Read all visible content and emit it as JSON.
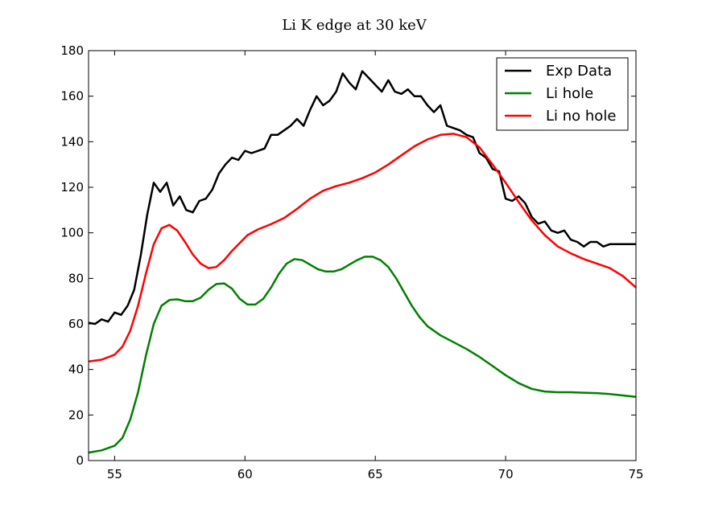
{
  "chart_data": {
    "type": "line",
    "title": "Li K edge at 30 keV",
    "xlabel": "",
    "ylabel": "",
    "xlim": [
      54,
      75
    ],
    "ylim": [
      0,
      180
    ],
    "xticks": [
      55,
      60,
      65,
      70,
      75
    ],
    "yticks": [
      0,
      20,
      40,
      60,
      80,
      100,
      120,
      140,
      160,
      180
    ],
    "grid": false,
    "legend_position": "top-right",
    "series": [
      {
        "name": "Exp Data",
        "color": "#000000",
        "x": [
          54.0,
          54.25,
          54.5,
          54.75,
          55.0,
          55.25,
          55.5,
          55.75,
          56.0,
          56.25,
          56.5,
          56.75,
          57.0,
          57.25,
          57.5,
          57.75,
          58.0,
          58.25,
          58.5,
          58.75,
          59.0,
          59.25,
          59.5,
          59.75,
          60.0,
          60.25,
          60.5,
          60.75,
          61.0,
          61.25,
          61.5,
          61.75,
          62.0,
          62.25,
          62.5,
          62.75,
          63.0,
          63.25,
          63.5,
          63.75,
          64.0,
          64.25,
          64.5,
          64.75,
          65.0,
          65.25,
          65.5,
          65.75,
          66.0,
          66.25,
          66.5,
          66.75,
          67.0,
          67.25,
          67.5,
          67.75,
          68.0,
          68.25,
          68.5,
          68.75,
          69.0,
          69.25,
          69.5,
          69.75,
          70.0,
          70.25,
          70.5,
          70.75,
          71.0,
          71.25,
          71.5,
          71.75,
          72.0,
          72.25,
          72.5,
          72.75,
          73.0,
          73.25,
          73.5,
          73.75,
          74.0,
          74.25,
          74.5,
          74.75,
          75.0
        ],
        "y": [
          60.5,
          60,
          62,
          61,
          65,
          64,
          68,
          75,
          90,
          108,
          122,
          118,
          122,
          112,
          116,
          110,
          109,
          114,
          115,
          119,
          126,
          130,
          133,
          132,
          136,
          135,
          136,
          137,
          143,
          143,
          145,
          147,
          150,
          147,
          154,
          160,
          156,
          158,
          162,
          170,
          166,
          163,
          171,
          168,
          165,
          162,
          167,
          162,
          161,
          163,
          160,
          160,
          156,
          153,
          156,
          147,
          146,
          145,
          143,
          142,
          135,
          133,
          128,
          127,
          115,
          114,
          116,
          113,
          107,
          104,
          105,
          101,
          100,
          101,
          97,
          96,
          94,
          96,
          96,
          94,
          95,
          95,
          95,
          95,
          95
        ]
      },
      {
        "name": "Li hole",
        "color": "#008000",
        "x": [
          54.0,
          54.5,
          55.0,
          55.3,
          55.6,
          55.9,
          56.2,
          56.5,
          56.8,
          57.1,
          57.4,
          57.7,
          58.0,
          58.3,
          58.6,
          58.9,
          59.2,
          59.5,
          59.8,
          60.1,
          60.4,
          60.7,
          61.0,
          61.3,
          61.6,
          61.9,
          62.2,
          62.5,
          62.8,
          63.1,
          63.4,
          63.7,
          64.0,
          64.3,
          64.6,
          64.9,
          65.2,
          65.5,
          65.8,
          66.1,
          66.4,
          66.7,
          67.0,
          67.5,
          68.0,
          68.5,
          69.0,
          69.5,
          70.0,
          70.5,
          71.0,
          71.5,
          72.0,
          72.5,
          73.0,
          73.5,
          74.0,
          74.5,
          75.0
        ],
        "y": [
          3.5,
          4.5,
          6.5,
          10,
          18,
          30,
          46,
          60,
          68,
          70.5,
          70.8,
          70,
          70,
          71.5,
          75,
          77.5,
          77.8,
          75.5,
          71,
          68.5,
          68.5,
          71,
          76,
          82,
          86.5,
          88.5,
          88,
          86,
          84,
          83,
          83,
          84,
          86,
          88,
          89.5,
          89.5,
          88,
          85,
          80,
          74,
          68,
          63,
          59,
          55,
          52,
          49,
          45.5,
          41.5,
          37.5,
          34,
          31.5,
          30.3,
          30,
          30,
          29.8,
          29.6,
          29.2,
          28.6,
          28
        ]
      },
      {
        "name": "Li no hole",
        "color": "#ff0000",
        "x": [
          54.0,
          54.5,
          55.0,
          55.3,
          55.6,
          55.9,
          56.2,
          56.5,
          56.8,
          57.1,
          57.4,
          57.7,
          58.0,
          58.3,
          58.6,
          58.9,
          59.2,
          59.5,
          59.8,
          60.1,
          60.5,
          61.0,
          61.5,
          62.0,
          62.5,
          63.0,
          63.5,
          64.0,
          64.5,
          65.0,
          65.5,
          66.0,
          66.5,
          67.0,
          67.5,
          68.0,
          68.5,
          69.0,
          69.5,
          70.0,
          70.5,
          71.0,
          71.5,
          72.0,
          72.5,
          73.0,
          73.5,
          74.0,
          74.5,
          75.0
        ],
        "y": [
          43.5,
          44.3,
          46.5,
          50,
          57,
          68,
          82,
          95,
          102,
          103.5,
          101,
          96,
          90.5,
          86.5,
          84.5,
          85,
          88,
          92,
          95.5,
          99,
          101.5,
          103.8,
          106.5,
          110.5,
          115,
          118.5,
          120.5,
          122,
          124,
          126.5,
          130,
          134,
          138,
          141,
          143,
          143.5,
          142,
          137.5,
          130,
          122,
          113.5,
          105.5,
          99,
          94,
          91,
          88.5,
          86.5,
          84.5,
          81,
          76
        ]
      }
    ]
  },
  "legend": {
    "items": [
      "Exp Data",
      "Li hole",
      "Li no hole"
    ]
  }
}
